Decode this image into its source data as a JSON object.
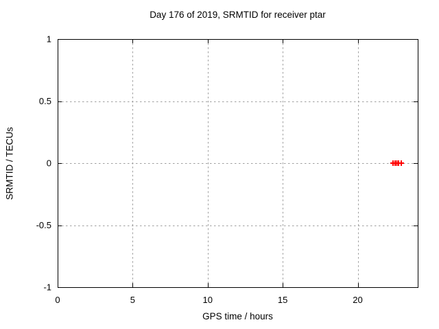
{
  "chart_data": {
    "type": "scatter",
    "title": "Day 176 of 2019, SRMTID for receiver ptar",
    "xlabel": "GPS time / hours",
    "ylabel": "SRMTID / TECUs",
    "xlim": [
      0,
      24
    ],
    "ylim": [
      -1,
      1
    ],
    "xticks": [
      0,
      5,
      10,
      15,
      20
    ],
    "yticks": [
      -1,
      -0.5,
      0,
      0.5,
      1
    ],
    "grid": true,
    "legend_position": "none",
    "marker": "plus",
    "series": [
      {
        "name": "SRMTID",
        "color": "#ff0000",
        "points": [
          {
            "x": 22.35,
            "y": 0
          },
          {
            "x": 22.48,
            "y": 0
          },
          {
            "x": 22.6,
            "y": 0
          },
          {
            "x": 22.71,
            "y": 0
          },
          {
            "x": 22.9,
            "y": 0
          }
        ]
      }
    ],
    "colors": {
      "background": "#ffffff",
      "border": "#000000",
      "grid": "#9e9e9e",
      "text": "#000000",
      "point": "#ff0000"
    }
  }
}
